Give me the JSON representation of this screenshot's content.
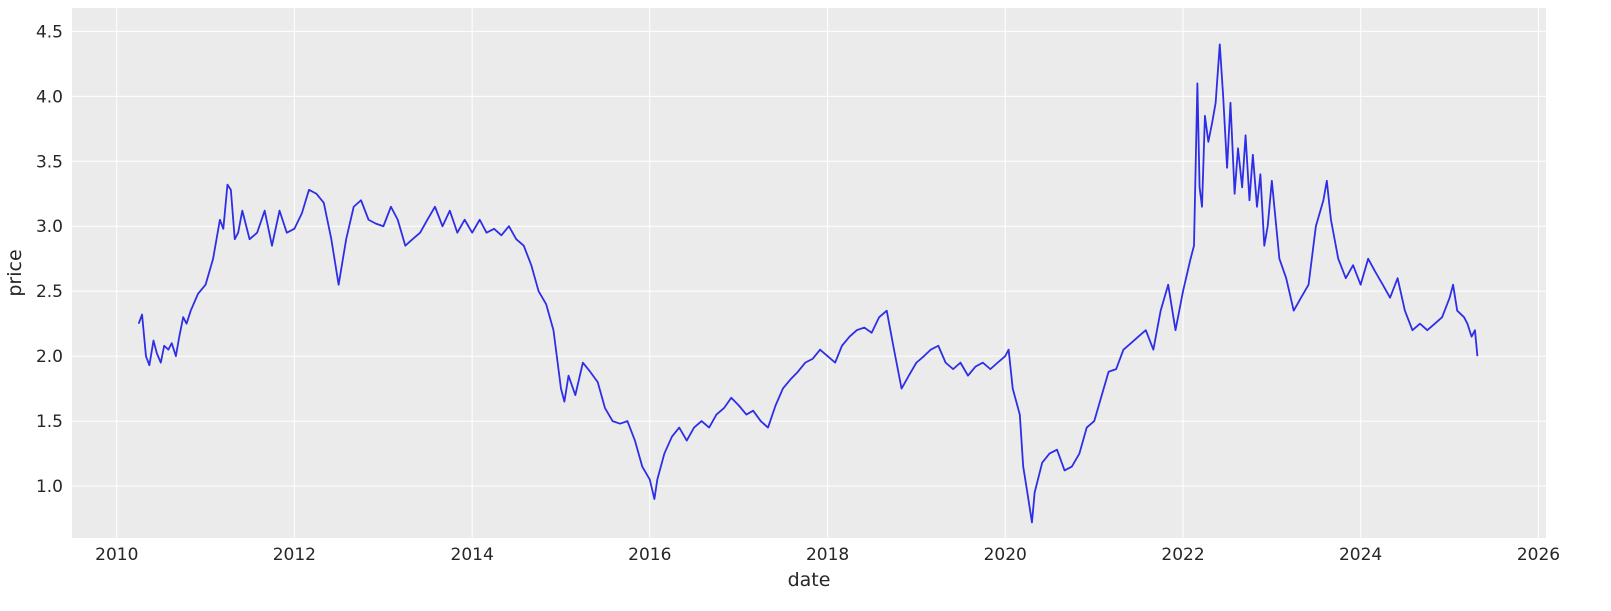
{
  "chart_data": {
    "type": "line",
    "title": "",
    "xlabel": "date",
    "ylabel": "price",
    "x_scale": "date",
    "xlim": [
      "2009-07-01",
      "2026-02-01"
    ],
    "ylim": [
      0.6,
      4.68
    ],
    "x_ticks": [
      "2010",
      "2012",
      "2014",
      "2016",
      "2018",
      "2020",
      "2022",
      "2024",
      "2026"
    ],
    "y_ticks": [
      "1.0",
      "1.5",
      "2.0",
      "2.5",
      "3.0",
      "3.5",
      "4.0",
      "4.5"
    ],
    "grid": true,
    "legend": "none",
    "colors": {
      "plot_background": "#ebebeb",
      "grid": "#ffffff",
      "line": "#2e2ee6",
      "text": "#262626"
    },
    "series": [
      {
        "x": [
          "2010-04-01",
          "2010-04-15",
          "2010-05-01",
          "2010-05-15",
          "2010-06-01",
          "2010-06-15",
          "2010-07-01",
          "2010-07-15",
          "2010-08-01",
          "2010-08-15",
          "2010-09-01",
          "2010-09-15",
          "2010-10-01",
          "2010-10-15",
          "2010-11-01",
          "2010-12-01",
          "2011-01-01",
          "2011-02-01",
          "2011-03-01",
          "2011-03-15",
          "2011-04-01",
          "2011-04-15",
          "2011-05-01",
          "2011-05-15",
          "2011-06-01",
          "2011-07-01",
          "2011-08-01",
          "2011-09-01",
          "2011-10-01",
          "2011-11-01",
          "2011-12-01",
          "2012-01-01",
          "2012-02-01",
          "2012-03-01",
          "2012-04-01",
          "2012-05-01",
          "2012-06-01",
          "2012-07-01",
          "2012-08-01",
          "2012-09-01",
          "2012-10-01",
          "2012-11-01",
          "2012-12-01",
          "2013-01-01",
          "2013-02-01",
          "2013-03-01",
          "2013-04-01",
          "2013-05-01",
          "2013-06-01",
          "2013-07-01",
          "2013-08-01",
          "2013-09-01",
          "2013-10-01",
          "2013-11-01",
          "2013-12-01",
          "2014-01-01",
          "2014-02-01",
          "2014-03-01",
          "2014-04-01",
          "2014-05-01",
          "2014-06-01",
          "2014-07-01",
          "2014-08-01",
          "2014-09-01",
          "2014-10-01",
          "2014-11-01",
          "2014-12-01",
          "2015-01-01",
          "2015-01-15",
          "2015-02-01",
          "2015-03-01",
          "2015-04-01",
          "2015-05-01",
          "2015-06-01",
          "2015-07-01",
          "2015-08-01",
          "2015-09-01",
          "2015-10-01",
          "2015-11-01",
          "2015-12-01",
          "2016-01-01",
          "2016-01-20",
          "2016-02-01",
          "2016-03-01",
          "2016-04-01",
          "2016-05-01",
          "2016-06-01",
          "2016-07-01",
          "2016-08-01",
          "2016-09-01",
          "2016-10-01",
          "2016-11-01",
          "2016-12-01",
          "2017-01-01",
          "2017-02-01",
          "2017-03-01",
          "2017-04-01",
          "2017-05-01",
          "2017-06-01",
          "2017-07-01",
          "2017-08-01",
          "2017-09-01",
          "2017-10-01",
          "2017-11-01",
          "2017-12-01",
          "2018-01-01",
          "2018-02-01",
          "2018-03-01",
          "2018-04-01",
          "2018-05-01",
          "2018-06-01",
          "2018-07-01",
          "2018-08-01",
          "2018-09-01",
          "2018-10-01",
          "2018-11-01",
          "2018-12-01",
          "2019-01-01",
          "2019-02-01",
          "2019-03-01",
          "2019-04-01",
          "2019-05-01",
          "2019-06-01",
          "2019-07-01",
          "2019-08-01",
          "2019-09-01",
          "2019-10-01",
          "2019-11-01",
          "2019-12-01",
          "2020-01-01",
          "2020-01-15",
          "2020-02-01",
          "2020-03-01",
          "2020-03-15",
          "2020-04-01",
          "2020-04-20",
          "2020-05-01",
          "2020-06-01",
          "2020-07-01",
          "2020-08-01",
          "2020-09-01",
          "2020-10-01",
          "2020-11-01",
          "2020-12-01",
          "2021-01-01",
          "2021-02-01",
          "2021-03-01",
          "2021-04-01",
          "2021-05-01",
          "2021-06-01",
          "2021-07-01",
          "2021-08-01",
          "2021-09-01",
          "2021-10-01",
          "2021-11-01",
          "2021-12-01",
          "2022-01-01",
          "2022-02-01",
          "2022-02-15",
          "2022-03-01",
          "2022-03-10",
          "2022-03-20",
          "2022-04-01",
          "2022-04-15",
          "2022-05-01",
          "2022-05-15",
          "2022-06-01",
          "2022-06-15",
          "2022-07-01",
          "2022-07-15",
          "2022-08-01",
          "2022-08-15",
          "2022-09-01",
          "2022-09-15",
          "2022-10-01",
          "2022-10-15",
          "2022-11-01",
          "2022-11-15",
          "2022-12-01",
          "2022-12-15",
          "2023-01-01",
          "2023-02-01",
          "2023-03-01",
          "2023-04-01",
          "2023-05-01",
          "2023-06-01",
          "2023-07-01",
          "2023-08-01",
          "2023-08-15",
          "2023-09-01",
          "2023-10-01",
          "2023-11-01",
          "2023-12-01",
          "2024-01-01",
          "2024-02-01",
          "2024-03-01",
          "2024-04-01",
          "2024-05-01",
          "2024-06-01",
          "2024-07-01",
          "2024-08-01",
          "2024-09-01",
          "2024-10-01",
          "2024-11-01",
          "2024-12-01",
          "2025-01-01",
          "2025-01-15",
          "2025-02-01",
          "2025-03-01",
          "2025-03-15",
          "2025-04-01",
          "2025-04-15",
          "2025-04-25"
        ],
        "y": [
          2.25,
          2.32,
          2.0,
          1.93,
          2.12,
          2.02,
          1.95,
          2.08,
          2.05,
          2.1,
          2.0,
          2.15,
          2.3,
          2.25,
          2.35,
          2.48,
          2.55,
          2.75,
          3.05,
          2.98,
          3.32,
          3.28,
          2.9,
          2.95,
          3.12,
          2.9,
          2.95,
          3.12,
          2.85,
          3.12,
          2.95,
          2.98,
          3.1,
          3.28,
          3.25,
          3.18,
          2.9,
          2.55,
          2.9,
          3.15,
          3.2,
          3.05,
          3.02,
          3.0,
          3.15,
          3.05,
          2.85,
          2.9,
          2.95,
          3.05,
          3.15,
          3.0,
          3.12,
          2.95,
          3.05,
          2.95,
          3.05,
          2.95,
          2.98,
          2.93,
          3.0,
          2.9,
          2.85,
          2.7,
          2.5,
          2.4,
          2.2,
          1.75,
          1.65,
          1.85,
          1.7,
          1.95,
          1.88,
          1.8,
          1.6,
          1.5,
          1.48,
          1.5,
          1.35,
          1.15,
          1.05,
          0.9,
          1.05,
          1.25,
          1.38,
          1.45,
          1.35,
          1.45,
          1.5,
          1.45,
          1.55,
          1.6,
          1.68,
          1.62,
          1.55,
          1.58,
          1.5,
          1.45,
          1.62,
          1.75,
          1.82,
          1.88,
          1.95,
          1.98,
          2.05,
          2.0,
          1.95,
          2.08,
          2.15,
          2.2,
          2.22,
          2.18,
          2.3,
          2.35,
          2.05,
          1.75,
          1.85,
          1.95,
          2.0,
          2.05,
          2.08,
          1.95,
          1.9,
          1.95,
          1.85,
          1.92,
          1.95,
          1.9,
          1.95,
          2.0,
          2.05,
          1.75,
          1.55,
          1.15,
          0.95,
          0.72,
          0.95,
          1.18,
          1.25,
          1.28,
          1.12,
          1.15,
          1.25,
          1.45,
          1.5,
          1.7,
          1.88,
          1.9,
          2.05,
          2.1,
          2.15,
          2.2,
          2.05,
          2.35,
          2.55,
          2.2,
          2.5,
          2.75,
          2.85,
          4.1,
          3.3,
          3.15,
          3.85,
          3.65,
          3.8,
          3.95,
          4.4,
          4.0,
          3.45,
          3.95,
          3.25,
          3.6,
          3.3,
          3.7,
          3.2,
          3.55,
          3.15,
          3.4,
          2.85,
          3.0,
          3.35,
          2.75,
          2.6,
          2.35,
          2.45,
          2.55,
          3.0,
          3.2,
          3.35,
          3.05,
          2.75,
          2.6,
          2.7,
          2.55,
          2.75,
          2.65,
          2.55,
          2.45,
          2.6,
          2.35,
          2.2,
          2.25,
          2.2,
          2.25,
          2.3,
          2.45,
          2.55,
          2.35,
          2.3,
          2.25,
          2.15,
          2.2,
          2.0
        ]
      }
    ]
  }
}
